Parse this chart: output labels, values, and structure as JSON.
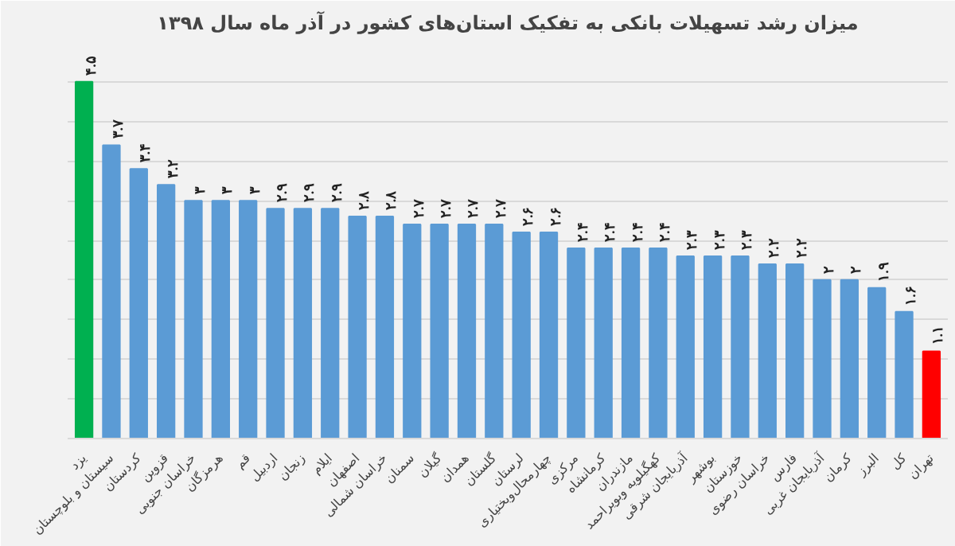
{
  "chart_data": {
    "type": "bar",
    "title": "میزان رشد تسهیلات بانکی به تفکیک استان‌های کشور در آذر ماه سال ۱۳۹۸",
    "categories": [
      "یزد",
      "سیستان و بلوچستان",
      "کردستان",
      "قزوین",
      "خراسان جنوبی",
      "هرمزگان",
      "قم",
      "اردبیل",
      "زنجان",
      "ایلام",
      "اصفهان",
      "خراسان شمالی",
      "سمنان",
      "گیلان",
      "همدان",
      "گلستان",
      "لرستان",
      "چهارمحال‌وبختیاری",
      "مرکزی",
      "کرمانشاه",
      "مازندران",
      "کهگیلویه وبویراحمد",
      "آذربایجان شرقی",
      "بوشهر",
      "خوزستان",
      "خراسان رضوی",
      "فارس",
      "آذربایجان غربی",
      "کرمان",
      "البرز",
      "کل",
      "تهران"
    ],
    "values": [
      4.5,
      3.7,
      3.4,
      3.2,
      3,
      3,
      3,
      2.9,
      2.9,
      2.9,
      2.8,
      2.8,
      2.7,
      2.7,
      2.7,
      2.7,
      2.6,
      2.6,
      2.4,
      2.4,
      2.4,
      2.4,
      2.3,
      2.3,
      2.3,
      2.2,
      2.2,
      2,
      2,
      1.9,
      1.6,
      1.1
    ],
    "value_labels": [
      "۴.۵",
      "۳.۷",
      "۳.۴",
      "۳.۲",
      "۳",
      "۳",
      "۳",
      "۲.۹",
      "۲.۹",
      "۲.۹",
      "۲.۸",
      "۲.۸",
      "۲.۷",
      "۲.۷",
      "۲.۷",
      "۲.۷",
      "۲.۶",
      "۲.۶",
      "۲.۴",
      "۲.۴",
      "۲.۴",
      "۲.۴",
      "۲.۳",
      "۲.۳",
      "۲.۳",
      "۲.۲",
      "۲.۲",
      "۲",
      "۲",
      "۱.۹",
      "۱.۶",
      "۱.۱"
    ],
    "colors": [
      "#00b050",
      "#5b9bd5",
      "#5b9bd5",
      "#5b9bd5",
      "#5b9bd5",
      "#5b9bd5",
      "#5b9bd5",
      "#5b9bd5",
      "#5b9bd5",
      "#5b9bd5",
      "#5b9bd5",
      "#5b9bd5",
      "#5b9bd5",
      "#5b9bd5",
      "#5b9bd5",
      "#5b9bd5",
      "#5b9bd5",
      "#5b9bd5",
      "#5b9bd5",
      "#5b9bd5",
      "#5b9bd5",
      "#5b9bd5",
      "#5b9bd5",
      "#5b9bd5",
      "#5b9bd5",
      "#5b9bd5",
      "#5b9bd5",
      "#5b9bd5",
      "#5b9bd5",
      "#5b9bd5",
      "#5b9bd5",
      "#ff0000"
    ],
    "ylim": [
      0,
      5
    ],
    "yticks": [
      {
        "value": 0,
        "label": null
      },
      {
        "value": 0.5,
        "label": null
      },
      {
        "value": 1,
        "label": null
      },
      {
        "value": 1.5,
        "label": null
      },
      {
        "value": 2,
        "label": null
      },
      {
        "value": 2.5,
        "label": null
      },
      {
        "value": 3,
        "label": null
      },
      {
        "value": 3.5,
        "label": null
      },
      {
        "value": 4,
        "label": null
      },
      {
        "value": 4.5,
        "label": null
      },
      {
        "value": 5,
        "label": null
      }
    ],
    "grid": "y",
    "tick_labels": "x"
  }
}
